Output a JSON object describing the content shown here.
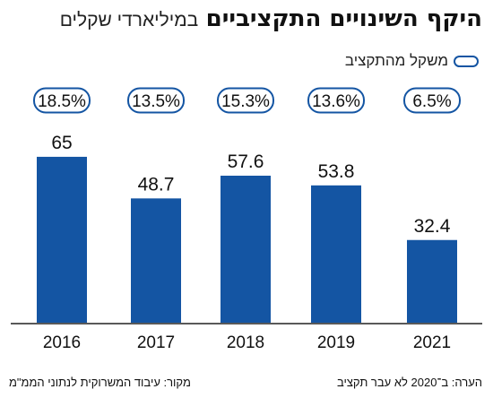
{
  "header": {
    "title": "היקף השינויים התקציביים",
    "subtitle": "במיליארדי שקלים"
  },
  "legend": {
    "label": "משקל מהתקציב"
  },
  "colors": {
    "bar": "#1455a3",
    "pill_border": "#1455a3",
    "baseline": "#222222"
  },
  "chart_data": {
    "type": "bar",
    "categories": [
      "2016",
      "2017",
      "2018",
      "2019",
      "2021"
    ],
    "values": [
      65,
      48.7,
      57.6,
      53.8,
      32.4
    ],
    "value_labels": [
      "65",
      "48.7",
      "57.6",
      "53.8",
      "32.4"
    ],
    "share_of_budget_labels": [
      "18.5%",
      "13.5%",
      "15.3%",
      "13.6%",
      "6.5%"
    ],
    "ylim": [
      0,
      72
    ],
    "grid": false
  },
  "footer": {
    "source": "מקור: עיבוד המשרוקית לנתוני הממ\"מ",
    "note": "הערה: ב־2020 לא עבר תקציב"
  }
}
